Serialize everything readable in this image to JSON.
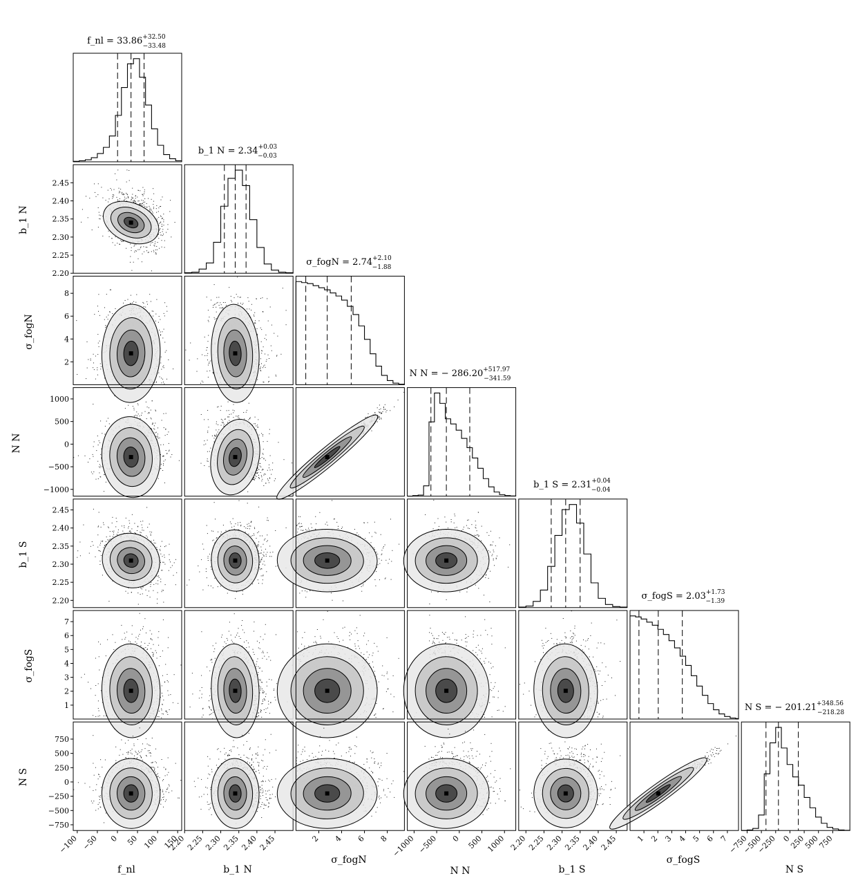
{
  "chart_data": {
    "type": "corner",
    "parameters": [
      {
        "id": "fnl",
        "label": "f_nl",
        "title_name": "f_nl",
        "median": 33.86,
        "plus": 32.5,
        "minus": 33.48,
        "median_text": "33.86",
        "plus_text": "+32.50",
        "minus_text": "−33.48",
        "range": [
          -110,
          160
        ],
        "ticks": [
          -100,
          -50,
          0,
          50,
          100,
          150
        ],
        "hist_bins": [
          -110,
          -95,
          -80,
          -65,
          -50,
          -35,
          -20,
          -5,
          10,
          25,
          40,
          55,
          70,
          85,
          100,
          115,
          130,
          145,
          160
        ],
        "hist_counts": [
          0.5,
          1,
          2,
          4,
          8,
          14,
          25,
          45,
          72,
          95,
          100,
          82,
          55,
          32,
          16,
          7,
          3,
          1
        ]
      },
      {
        "id": "b1N",
        "label": "b_1 N",
        "title_name": "b_1 N",
        "median": 2.34,
        "plus": 0.03,
        "minus": 0.03,
        "median_text": "2.34",
        "plus_text": "+0.03",
        "minus_text": "−0.03",
        "range": [
          2.2,
          2.5
        ],
        "ticks": [
          2.2,
          2.25,
          2.3,
          2.35,
          2.4,
          2.45
        ],
        "hist_bins": [
          2.2,
          2.22,
          2.24,
          2.26,
          2.28,
          2.3,
          2.32,
          2.34,
          2.36,
          2.38,
          2.4,
          2.42,
          2.44,
          2.46,
          2.48,
          2.5
        ],
        "hist_counts": [
          0.5,
          1,
          4,
          10,
          30,
          65,
          92,
          100,
          85,
          52,
          25,
          9,
          3,
          1,
          0.5
        ]
      },
      {
        "id": "sigN",
        "label": "σ_fogN",
        "title_name": "σ_fogN",
        "median": 2.74,
        "plus": 2.1,
        "minus": 1.88,
        "median_text": "2.74",
        "plus_text": "+2.10",
        "minus_text": "−1.88",
        "range": [
          0,
          9.5
        ],
        "ticks": [
          2,
          4,
          6,
          8
        ],
        "hist_bins": [
          0,
          0.5,
          1,
          1.5,
          2,
          2.5,
          3,
          3.5,
          4,
          4.5,
          5,
          5.5,
          6,
          6.5,
          7,
          7.5,
          8,
          8.5,
          9,
          9.5
        ],
        "hist_counts": [
          100,
          99,
          98,
          96,
          94,
          92,
          89,
          86,
          82,
          76,
          68,
          57,
          44,
          30,
          18,
          9,
          4,
          1.5,
          0.5
        ]
      },
      {
        "id": "NN",
        "label": "N N",
        "title_name": "N N",
        "median": -286.2,
        "plus": 517.97,
        "minus": 341.59,
        "median_text": "− 286.20",
        "plus_text": "+517.97",
        "minus_text": "−341.59",
        "range": [
          -1150,
          1250
        ],
        "ticks": [
          -1000,
          -500,
          0,
          500,
          1000
        ],
        "hist_bins": [
          -1150,
          -1030,
          -910,
          -790,
          -670,
          -550,
          -430,
          -310,
          -190,
          -70,
          50,
          170,
          290,
          410,
          530,
          650,
          770,
          890,
          1010,
          1130,
          1250
        ],
        "hist_counts": [
          0,
          0.5,
          1,
          10,
          72,
          100,
          90,
          75,
          70,
          64,
          56,
          47,
          37,
          27,
          17,
          9,
          4,
          1.5,
          0.5,
          0.2
        ]
      },
      {
        "id": "b1S",
        "label": "b_1 S",
        "title_name": "b_1 S",
        "median": 2.31,
        "plus": 0.04,
        "minus": 0.04,
        "median_text": "2.31",
        "plus_text": "+0.04",
        "minus_text": "−0.04",
        "range": [
          2.18,
          2.48
        ],
        "ticks": [
          2.2,
          2.25,
          2.3,
          2.35,
          2.4,
          2.45
        ],
        "hist_bins": [
          2.18,
          2.2,
          2.22,
          2.24,
          2.26,
          2.28,
          2.3,
          2.32,
          2.34,
          2.36,
          2.38,
          2.4,
          2.42,
          2.44,
          2.46,
          2.48
        ],
        "hist_counts": [
          0.5,
          1.5,
          6,
          17,
          40,
          70,
          95,
          100,
          82,
          52,
          24,
          9,
          3,
          1,
          0.5
        ]
      },
      {
        "id": "sigS",
        "label": "σ_fogS",
        "title_name": "σ_fogS",
        "median": 2.03,
        "plus": 1.73,
        "minus": 1.39,
        "median_text": "2.03",
        "plus_text": "+1.73",
        "minus_text": "−1.39",
        "range": [
          0,
          7.8
        ],
        "ticks": [
          1,
          2,
          3,
          4,
          5,
          6,
          7
        ],
        "hist_bins": [
          0,
          0.4,
          0.8,
          1.2,
          1.6,
          2.0,
          2.4,
          2.8,
          3.2,
          3.6,
          4.0,
          4.4,
          4.8,
          5.2,
          5.6,
          6.0,
          6.4,
          6.8,
          7.2,
          7.6,
          7.8
        ],
        "hist_counts": [
          100,
          99,
          97,
          94,
          91,
          87,
          82,
          76,
          69,
          61,
          52,
          42,
          32,
          23,
          15,
          9,
          5,
          2.5,
          1,
          0.5
        ]
      },
      {
        "id": "NS",
        "label": "N S",
        "title_name": "N S",
        "median": -201.21,
        "plus": 348.56,
        "minus": 218.28,
        "median_text": "− 201.21",
        "plus_text": "+348.56",
        "minus_text": "−218.28",
        "range": [
          -850,
          1050
        ],
        "ticks": [
          -750,
          -500,
          -250,
          0,
          250,
          500,
          750
        ],
        "hist_bins": [
          -850,
          -750,
          -650,
          -550,
          -450,
          -350,
          -250,
          -150,
          -50,
          50,
          150,
          250,
          350,
          450,
          550,
          650,
          750,
          850,
          950,
          1050
        ],
        "hist_counts": [
          0,
          0.5,
          2,
          15,
          55,
          85,
          100,
          80,
          64,
          52,
          44,
          32,
          22,
          13,
          7,
          3,
          1.5,
          0.5,
          0.2
        ]
      }
    ],
    "correlations": [
      [
        1,
        -0.55,
        -0.05,
        0.15,
        -0.45,
        0.05,
        0.05
      ],
      [
        -0.55,
        1,
        0.05,
        -0.3,
        0.1,
        0.05,
        0.05
      ],
      [
        -0.05,
        0.05,
        1,
        0.97,
        -0.05,
        0.05,
        0.05
      ],
      [
        0.15,
        -0.3,
        0.97,
        1,
        0.05,
        0.05,
        0.05
      ],
      [
        -0.45,
        0.1,
        -0.05,
        0.05,
        1,
        0.05,
        0.1
      ],
      [
        0.05,
        0.05,
        0.05,
        0.05,
        0.05,
        1,
        0.97
      ],
      [
        0.05,
        0.05,
        0.05,
        0.05,
        0.1,
        0.97,
        1
      ]
    ],
    "contour_levels": 4,
    "quantiles": [
      0.16,
      0.5,
      0.84
    ]
  }
}
